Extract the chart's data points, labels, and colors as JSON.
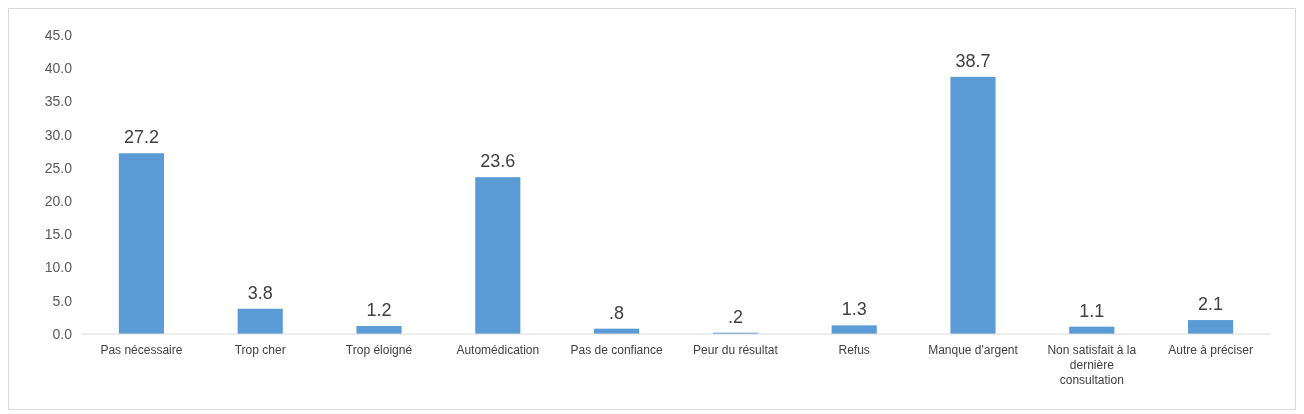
{
  "chart_data": {
    "type": "bar",
    "categories": [
      "Pas nécessaire",
      "Trop cher",
      "Trop éloigné",
      "Automédication",
      "Pas de confiance",
      "Peur du résultat",
      "Refus",
      "Manque d'argent",
      "Non satisfait à la dernière consultation",
      "Autre à préciser"
    ],
    "values": [
      27.2,
      3.8,
      1.2,
      23.6,
      0.8,
      0.2,
      1.3,
      38.7,
      1.1,
      2.1
    ],
    "value_labels": [
      "27.2",
      "3.8",
      "1.2",
      "23.6",
      ".8",
      ".2",
      "1.3",
      "38.7",
      "1.1",
      "2.1"
    ],
    "color": "#5b9bd5",
    "ylim": [
      0,
      45
    ],
    "yticks": [
      {
        "value": 0,
        "label": "0.0"
      },
      {
        "value": 5,
        "label": "5.0"
      },
      {
        "value": 10,
        "label": "10.0"
      },
      {
        "value": 15,
        "label": "15.0"
      },
      {
        "value": 20,
        "label": "20.0"
      },
      {
        "value": 25,
        "label": "25.0"
      },
      {
        "value": 30,
        "label": "30.0"
      },
      {
        "value": 35,
        "label": "35.0"
      },
      {
        "value": 40,
        "label": "40.0"
      },
      {
        "value": 45,
        "label": "45.0"
      }
    ]
  }
}
